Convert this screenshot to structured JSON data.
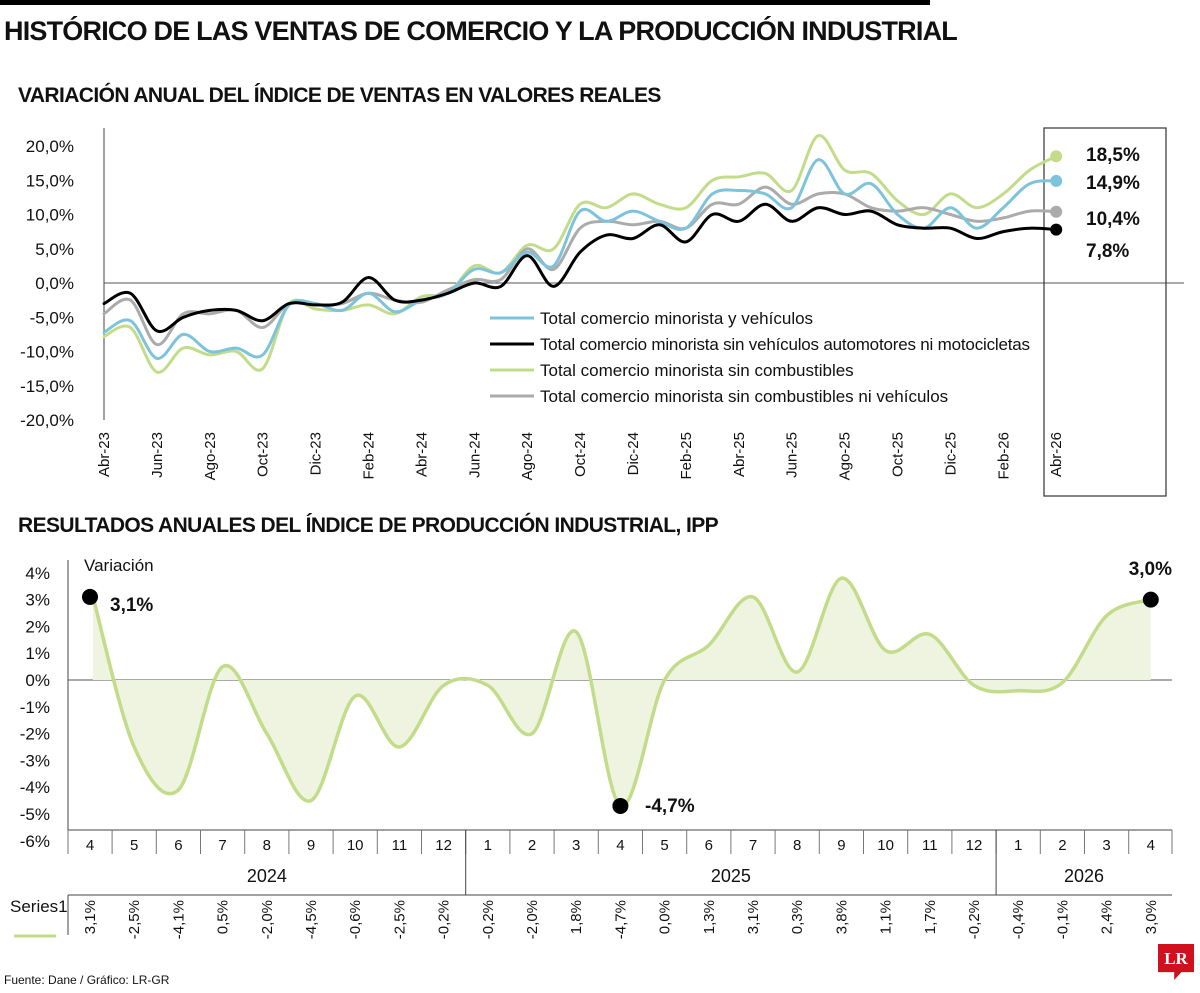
{
  "header": {
    "title": "HISTÓRICO DE LAS VENTAS DE COMERCIO Y LA PRODUCCIÓN INDUSTRIAL",
    "sub1": "VARIACIÓN ANUAL DEL ÍNDICE DE VENTAS EN VALORES REALES",
    "sub2": "RESULTADOS ANUALES DEL ÍNDICE DE PRODUCCIÓN INDUSTRIAL, IPP"
  },
  "footer": {
    "source": "Fuente: Dane / Gráfico: LR-GR"
  },
  "logo": {
    "text": "LR"
  },
  "chart_data": [
    {
      "type": "line",
      "title": "VARIACIÓN ANUAL DEL ÍNDICE DE VENTAS EN VALORES REALES",
      "ylim": [
        -20,
        20
      ],
      "yticks": [
        "20,0%",
        "15,0%",
        "10,0%",
        "5,0%",
        "0,0%",
        "-5,0%",
        "-10,0%",
        "-15,0%",
        "-20,0%"
      ],
      "x": [
        "Abr-23",
        "May-23",
        "Jun-23",
        "Jul-23",
        "Ago-23",
        "Sep-23",
        "Oct-23",
        "Nov-23",
        "Dic-23",
        "Ene-24",
        "Feb-24",
        "Mar-24",
        "Abr-24",
        "May-24",
        "Jun-24",
        "Jul-24",
        "Ago-24",
        "Sep-24",
        "Oct-24",
        "Nov-24",
        "Dic-24",
        "Ene-25",
        "Feb-25",
        "Mar-25",
        "Abr-25",
        "May-25",
        "Jun-25",
        "Jul-25",
        "Ago-25",
        "Sep-25",
        "Oct-25",
        "Nov-25",
        "Dic-25",
        "Ene-26",
        "Feb-26",
        "Mar-26",
        "Abr-26"
      ],
      "x_tick_labels": [
        "Abr-23",
        "Jun-23",
        "Ago-23",
        "Oct-23",
        "Dic-23",
        "Feb-24",
        "Abr-24",
        "Jun-24",
        "Ago-24",
        "Oct-24",
        "Dic-24",
        "Feb-25",
        "Abr-25",
        "Jun-25",
        "Ago-25",
        "Oct-25",
        "Dic-25",
        "Feb-26",
        "Abr-26"
      ],
      "legend_position": "center-right",
      "grid": false,
      "series": [
        {
          "name": "Total comercio minorista y vehículos",
          "color": "#7ec3dc",
          "values": [
            -7.2,
            -5.5,
            -11,
            -7.5,
            -10,
            -9.5,
            -10.5,
            -3.2,
            -3,
            -4,
            -1.5,
            -4.2,
            -2.5,
            -1.5,
            2,
            1.5,
            4.5,
            2.5,
            10.5,
            9,
            10.5,
            9,
            8,
            13,
            13.5,
            13,
            11,
            18,
            13,
            14.5,
            10,
            8,
            11,
            8,
            11,
            14.5,
            14.9
          ],
          "end_label": "14,9%"
        },
        {
          "name": "Total comercio minorista sin vehículos automotores ni motocicletas",
          "color": "#000000",
          "values": [
            -3,
            -1.5,
            -7,
            -5,
            -4,
            -4,
            -5.5,
            -3,
            -3.2,
            -2.8,
            0.8,
            -2.5,
            -2.5,
            -1.5,
            0,
            -0.5,
            4,
            -0.5,
            4.5,
            7,
            6.5,
            8.5,
            6,
            10,
            9,
            11.5,
            9,
            11,
            10,
            10.5,
            8.5,
            8,
            8,
            6.5,
            7.5,
            8,
            7.8
          ],
          "end_label": "7,8%"
        },
        {
          "name": "Total comercio minorista sin combustibles",
          "color": "#c2dc8a",
          "values": [
            -7.8,
            -6.5,
            -13,
            -9.5,
            -10.5,
            -10,
            -12.5,
            -3,
            -3.8,
            -4,
            -3.2,
            -4.5,
            -2,
            -1.5,
            2.5,
            1.5,
            5.5,
            5,
            11.5,
            11,
            13,
            11.5,
            11,
            15,
            15.5,
            16,
            13.5,
            21.5,
            16.5,
            16,
            12,
            10,
            13,
            11,
            13,
            16.5,
            18.5
          ],
          "end_label": "18,5%"
        },
        {
          "name": "Total comercio minorista sin combustibles ni vehículos",
          "color": "#ababab",
          "values": [
            -4.5,
            -2.5,
            -9,
            -4.5,
            -4.5,
            -4,
            -6.5,
            -3,
            -3.2,
            -3,
            -1.5,
            -2.5,
            -2.8,
            -1,
            0.5,
            0.5,
            5,
            2,
            8,
            9,
            8.5,
            9,
            8,
            11.5,
            11.5,
            14,
            11.5,
            13,
            13,
            11,
            10.5,
            11,
            10,
            9,
            9.5,
            10.5,
            10.4
          ],
          "end_label": "10,4%"
        }
      ]
    },
    {
      "type": "area",
      "title": "RESULTADOS ANUALES DEL ÍNDICE DE PRODUCCIÓN INDUSTRIAL, IPP",
      "ylabel": "Variación",
      "ylim": [
        -6,
        4
      ],
      "yticks": [
        "4%",
        "3%",
        "2%",
        "1%",
        "0%",
        "-1%",
        "-2%",
        "-3%",
        "-4%",
        "-5%",
        "-6%"
      ],
      "months": [
        "4",
        "5",
        "6",
        "7",
        "8",
        "9",
        "10",
        "11",
        "12",
        "1",
        "2",
        "3",
        "4",
        "5",
        "6",
        "7",
        "8",
        "9",
        "10",
        "11",
        "12",
        "1",
        "2",
        "3",
        "4"
      ],
      "years": [
        {
          "label": "2024",
          "span": 9
        },
        {
          "label": "2025",
          "span": 12
        },
        {
          "label": "2026",
          "span": 4
        }
      ],
      "color": "#c2dc8a",
      "series": [
        {
          "name": "Series1",
          "values": [
            3.1,
            -2.5,
            -4.1,
            0.5,
            -2.0,
            -4.5,
            -0.6,
            -2.5,
            -0.2,
            -0.2,
            -2.0,
            1.8,
            -4.7,
            0.0,
            1.3,
            3.1,
            0.3,
            3.8,
            1.1,
            1.7,
            -0.2,
            -0.4,
            -0.1,
            2.4,
            3.0
          ],
          "table_labels": [
            "3,1%",
            "-2,5%",
            "-4,1%",
            "0,5%",
            "-2,0%",
            "-4,5%",
            "-0,6%",
            "-2,5%",
            "-0,2%",
            "-0,2%",
            "-2,0%",
            "1,8%",
            "-4,7%",
            "0,0%",
            "1,3%",
            "3,1%",
            "0,3%",
            "3,8%",
            "1,1%",
            "1,7%",
            "-0,2%",
            "-0,4%",
            "-0,1%",
            "2,4%",
            "3,0%"
          ]
        }
      ],
      "annotations": [
        {
          "index": 0,
          "text": "3,1%"
        },
        {
          "index": 12,
          "text": "-4,7%"
        },
        {
          "index": 24,
          "text": "3,0%"
        }
      ]
    }
  ]
}
